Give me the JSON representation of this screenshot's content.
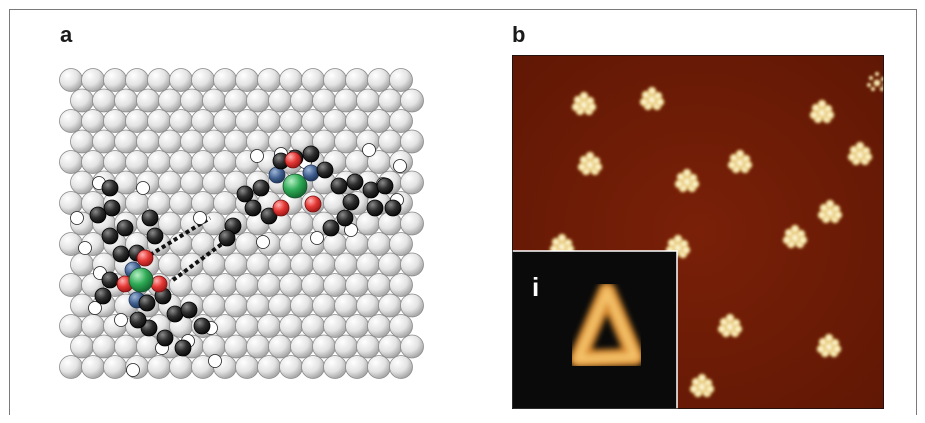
{
  "figure": {
    "panel_a_label": "a",
    "panel_b_label": "b",
    "inset_label": "i"
  },
  "colors": {
    "substrate_atom": "#e6e6e6",
    "carbon_atom": "#2e2e2e",
    "hydrogen_atom": "#ffffff",
    "oxygen_atom": "#e53935",
    "metal_atom": "#2eaa55",
    "nitrogen_atom": "#3f5f8f",
    "stm_background": "#6e1c06",
    "stm_feature": "#f5e3a2",
    "inset_background": "#0b0b0b",
    "inset_feature": "#e49a3a"
  }
}
